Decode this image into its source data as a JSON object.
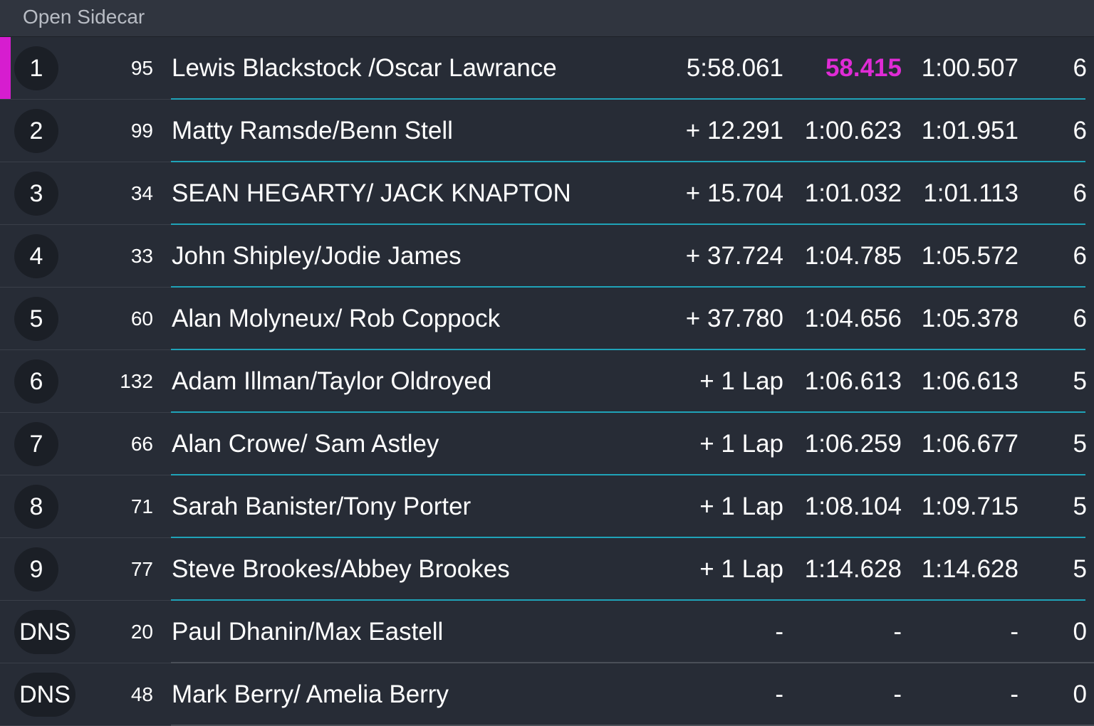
{
  "header": {
    "title": "Open Sidecar"
  },
  "table": {
    "rows": [
      [
        "1",
        "95",
        "Lewis Blackstock /Oscar Lawrance",
        "5:58.061",
        "58.415",
        "1:00.507",
        "6"
      ],
      [
        "2",
        "99",
        "Matty Ramsde/Benn Stell",
        "+ 12.291",
        "1:00.623",
        "1:01.951",
        "6"
      ],
      [
        "3",
        "34",
        "SEAN HEGARTY/ JACK KNAPTON",
        "+ 15.704",
        "1:01.032",
        "1:01.113",
        "6"
      ],
      [
        "4",
        "33",
        "John Shipley/Jodie James",
        "+ 37.724",
        "1:04.785",
        "1:05.572",
        "6"
      ],
      [
        "5",
        "60",
        "Alan Molyneux/ Rob Coppock",
        "+ 37.780",
        "1:04.656",
        "1:05.378",
        "6"
      ],
      [
        "6",
        "132",
        "Adam Illman/Taylor Oldroyed",
        "+ 1 Lap",
        "1:06.613",
        "1:06.613",
        "5"
      ],
      [
        "7",
        "66",
        "Alan Crowe/ Sam Astley",
        "+ 1 Lap",
        "1:06.259",
        "1:06.677",
        "5"
      ],
      [
        "8",
        "71",
        "Sarah Banister/Tony Porter",
        "+ 1 Lap",
        "1:08.104",
        "1:09.715",
        "5"
      ],
      [
        "9",
        "77",
        "Steve Brookes/Abbey Brookes",
        "+ 1 Lap",
        "1:14.628",
        "1:14.628",
        "5"
      ],
      [
        "DNS",
        "20",
        "Paul Dhanin/Max Eastell",
        "-",
        "-",
        "-",
        "0"
      ],
      [
        "DNS",
        "48",
        "Mark Berry/ Amelia Berry",
        "-",
        "-",
        "-",
        "0"
      ]
    ]
  }
}
